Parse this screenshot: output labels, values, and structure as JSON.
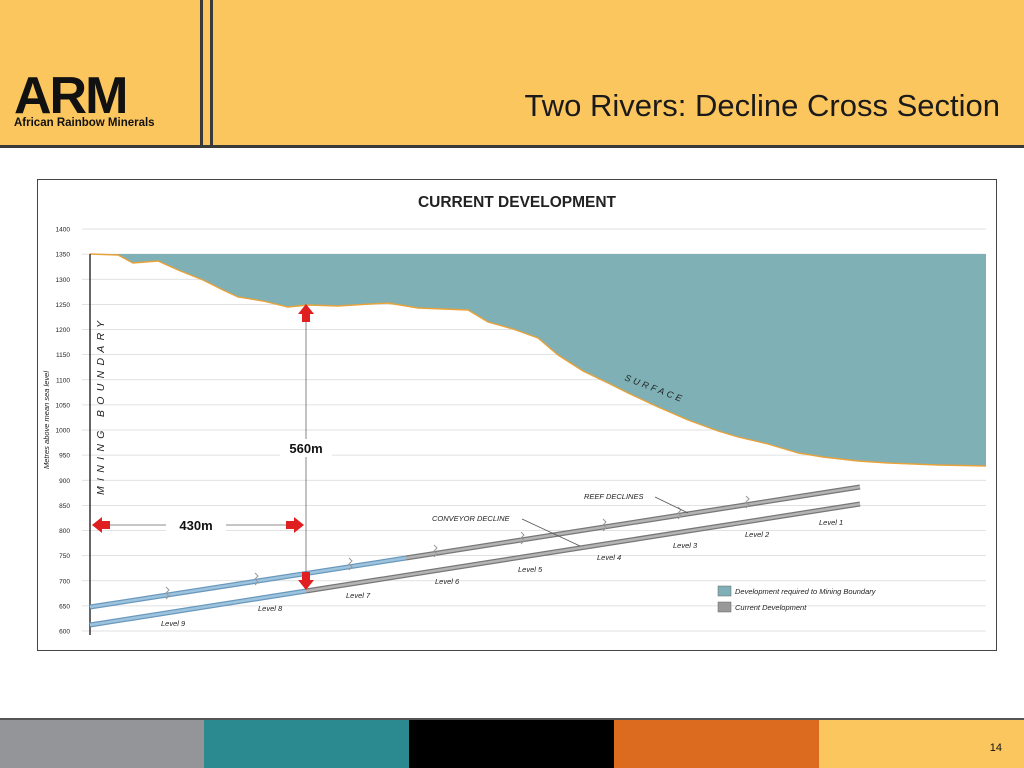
{
  "logo": {
    "wordmark": "ARM",
    "tagline": "African Rainbow Minerals"
  },
  "slide": {
    "title": "Two Rivers: Decline Cross Section",
    "page_number": "14"
  },
  "diagram": {
    "heading": "CURRENT DEVELOPMENT",
    "y_axis_label": "Metres above mean sea level",
    "y_ticks": [
      "1400",
      "1350",
      "1300",
      "1250",
      "1200",
      "1150",
      "1100",
      "1050",
      "1000",
      "950",
      "900",
      "850",
      "800",
      "750",
      "700",
      "650",
      "600"
    ],
    "y_range": [
      600,
      1400
    ],
    "boundary_label": "MINING BOUNDARY",
    "surface_label": "SURFACE",
    "reef_declines_label": "REEF DECLINES",
    "conveyor_decline_label": "CONVEYOR DECLINE",
    "vertical_measure_label": "560m",
    "horizontal_measure_label": "430m",
    "levels": [
      "Level 1",
      "Level 2",
      "Level 3",
      "Level 4",
      "Level 5",
      "Level 6",
      "Level 7",
      "Level 8",
      "Level 9"
    ],
    "legend": [
      {
        "label": "Development required to Mining Boundary",
        "color": "#7fb0b5"
      },
      {
        "label": "Current Development",
        "color": "#999999"
      }
    ],
    "colors": {
      "surface_fill": "#7fb0b5",
      "surface_line": "#e8a23a",
      "arrow": "#e02020",
      "decline_current": "#8c8c8c",
      "decline_required": "#7fa8c6"
    }
  },
  "footer": {
    "colors": [
      "#939598",
      "#2a8a8f",
      "#000000",
      "#dd6b1f",
      "#fcc65e"
    ]
  }
}
